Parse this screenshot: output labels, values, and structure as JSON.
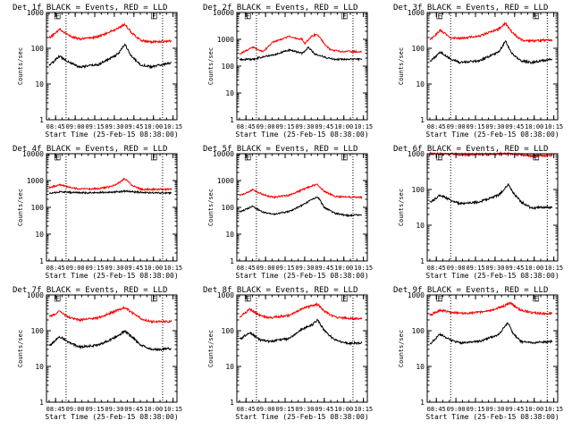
{
  "chart_data": [
    {
      "type": "line",
      "title": "Det 1f BLACK = Events, RED = LLD",
      "xlabel": "Start Time (25-Feb-15 08:38:00)",
      "ylabel": "Counts/sec",
      "yscale": "log",
      "ylim": [
        1,
        1000
      ],
      "y_ticks": [
        "1",
        "10",
        "100",
        "1000"
      ],
      "x_ticks": [
        "08:45",
        "09:00",
        "09:15",
        "09:30",
        "09:45",
        "10:00",
        "10:15"
      ],
      "x_ticks_min": [
        7,
        22,
        37,
        52,
        67,
        82,
        97
      ],
      "xlim_min": [
        0,
        100
      ],
      "marker_x_min": [
        15,
        89
      ],
      "markers": [
        "E",
        "E"
      ],
      "marker_pos_min": [
        7,
        81
      ],
      "series": [
        {
          "name": "Events",
          "color": "#000000",
          "x_min": [
            3,
            10,
            18,
            25,
            40,
            55,
            60,
            65,
            72,
            80,
            88,
            95
          ],
          "values": [
            35,
            60,
            40,
            30,
            35,
            70,
            130,
            60,
            35,
            30,
            35,
            38
          ]
        },
        {
          "name": "LLD",
          "color": "#ff0000",
          "x_min": [
            3,
            10,
            18,
            25,
            40,
            55,
            60,
            65,
            72,
            80,
            88,
            95
          ],
          "values": [
            200,
            340,
            220,
            180,
            210,
            360,
            480,
            280,
            170,
            150,
            155,
            160
          ]
        }
      ]
    },
    {
      "type": "line",
      "title": "Det 2f BLACK = Events, RED = LLD",
      "xlabel": "Start Time (25-Feb-15 08:38:00)",
      "ylabel": "Counts/sec",
      "yscale": "log",
      "ylim": [
        1,
        10000
      ],
      "y_ticks": [
        "1",
        "10",
        "100",
        "1000",
        "10000"
      ],
      "x_ticks": [
        "08:45",
        "09:00",
        "09:15",
        "09:30",
        "09:45",
        "10:00",
        "10:15"
      ],
      "x_ticks_min": [
        7,
        22,
        37,
        52,
        67,
        82,
        97
      ],
      "xlim_min": [
        0,
        100
      ],
      "marker_x_min": [
        15,
        89
      ],
      "markers": [
        "E",
        "E"
      ],
      "marker_pos_min": [
        7,
        81
      ],
      "series": [
        {
          "name": "Events",
          "color": "#000000",
          "x_min": [
            3,
            15,
            16,
            30,
            40,
            50,
            55,
            60,
            70,
            75,
            82,
            90,
            95
          ],
          "values": [
            180,
            180,
            200,
            280,
            400,
            300,
            500,
            280,
            200,
            180,
            180,
            180,
            180
          ]
        },
        {
          "name": "LLD",
          "color": "#ff0000",
          "x_min": [
            3,
            12,
            20,
            28,
            32,
            40,
            45,
            50,
            52,
            58,
            62,
            68,
            72,
            80,
            90,
            95
          ],
          "values": [
            300,
            500,
            350,
            800,
            900,
            1300,
            1100,
            1000,
            700,
            1400,
            1500,
            600,
            400,
            350,
            350,
            340
          ]
        }
      ]
    },
    {
      "type": "line",
      "title": "Det 3f BLACK = Events, RED = LLD",
      "xlabel": "Start Time (25-Feb-15 08:38:00)",
      "ylabel": "Counts/sec",
      "yscale": "log",
      "ylim": [
        1,
        1000
      ],
      "y_ticks": [
        "1",
        "10",
        "100",
        "1000"
      ],
      "x_ticks": [
        "08:45",
        "09:00",
        "09:15",
        "09:30",
        "09:45",
        "10:00",
        "10:15"
      ],
      "x_ticks_min": [
        7,
        22,
        37,
        52,
        67,
        82,
        97
      ],
      "xlim_min": [
        0,
        100
      ],
      "marker_x_min": [
        18,
        92
      ],
      "markers": [
        "E",
        "E"
      ],
      "marker_pos_min": [
        8,
        82
      ],
      "series": [
        {
          "name": "Events",
          "color": "#000000",
          "x_min": [
            3,
            10,
            18,
            25,
            40,
            55,
            60,
            65,
            72,
            80,
            88,
            95
          ],
          "values": [
            45,
            80,
            50,
            40,
            45,
            80,
            160,
            70,
            45,
            40,
            45,
            48
          ]
        },
        {
          "name": "LLD",
          "color": "#ff0000",
          "x_min": [
            3,
            10,
            18,
            25,
            40,
            55,
            60,
            65,
            72,
            80,
            88,
            95
          ],
          "values": [
            180,
            320,
            200,
            190,
            220,
            350,
            500,
            280,
            170,
            160,
            165,
            170
          ]
        }
      ]
    },
    {
      "type": "line",
      "title": "Det 4f BLACK = Events, RED = LLD",
      "xlabel": "Start Time (25-Feb-15 08:38:00)",
      "ylabel": "Counts/sec",
      "yscale": "log",
      "ylim": [
        1,
        10000
      ],
      "y_ticks": [
        "1",
        "10",
        "100",
        "1000",
        "10000"
      ],
      "x_ticks": [
        "08:45",
        "09:00",
        "09:15",
        "09:30",
        "09:45",
        "10:00",
        "10:15"
      ],
      "x_ticks_min": [
        7,
        22,
        37,
        52,
        67,
        82,
        97
      ],
      "xlim_min": [
        0,
        100
      ],
      "marker_x_min": [
        15,
        89
      ],
      "markers": [
        "E",
        "E"
      ],
      "marker_pos_min": [
        7,
        81
      ],
      "series": [
        {
          "name": "Events",
          "color": "#000000",
          "x_min": [
            3,
            10,
            20,
            30,
            40,
            50,
            60,
            70,
            80,
            90,
            95
          ],
          "values": [
            330,
            380,
            360,
            350,
            360,
            370,
            400,
            370,
            350,
            340,
            340
          ]
        },
        {
          "name": "LLD",
          "color": "#ff0000",
          "x_min": [
            3,
            10,
            20,
            30,
            40,
            50,
            56,
            60,
            65,
            72,
            80,
            90,
            95
          ],
          "values": [
            550,
            700,
            520,
            480,
            500,
            600,
            850,
            1200,
            700,
            480,
            470,
            470,
            470
          ]
        }
      ]
    },
    {
      "type": "line",
      "title": "Det 5f BLACK = Events, RED = LLD",
      "xlabel": "Start Time (25-Feb-15 08:38:00)",
      "ylabel": "Counts/sec",
      "yscale": "log",
      "ylim": [
        1,
        10000
      ],
      "y_ticks": [
        "1",
        "10",
        "100",
        "1000",
        "10000"
      ],
      "x_ticks": [
        "08:45",
        "09:00",
        "09:15",
        "09:30",
        "09:45",
        "10:00",
        "10:15"
      ],
      "x_ticks_min": [
        7,
        22,
        37,
        52,
        67,
        82,
        97
      ],
      "xlim_min": [
        0,
        100
      ],
      "marker_x_min": [
        15,
        89
      ],
      "markers": [
        "E",
        "E"
      ],
      "marker_pos_min": [
        7,
        81
      ],
      "series": [
        {
          "name": "Events",
          "color": "#000000",
          "x_min": [
            3,
            12,
            20,
            28,
            40,
            50,
            58,
            62,
            67,
            75,
            85,
            95
          ],
          "values": [
            70,
            110,
            65,
            55,
            70,
            120,
            200,
            250,
            100,
            60,
            50,
            52
          ]
        },
        {
          "name": "LLD",
          "color": "#ff0000",
          "x_min": [
            3,
            12,
            20,
            28,
            40,
            50,
            58,
            62,
            67,
            75,
            85,
            95
          ],
          "values": [
            280,
            450,
            300,
            240,
            280,
            450,
            650,
            700,
            400,
            260,
            240,
            240
          ]
        }
      ]
    },
    {
      "type": "line",
      "title": "Det 6f BLACK = Events, RED = LLD",
      "xlabel": "Start Time (25-Feb-15 08:38:00)",
      "ylabel": "Counts/sec",
      "yscale": "log",
      "ylim": [
        1,
        1000
      ],
      "y_ticks": [
        "1",
        "10",
        "100",
        "1000"
      ],
      "x_ticks": [
        "08:45",
        "09:00",
        "09:15",
        "09:30",
        "09:45",
        "10:00",
        "10:15"
      ],
      "x_ticks_min": [
        7,
        22,
        37,
        52,
        67,
        82,
        97
      ],
      "xlim_min": [
        0,
        100
      ],
      "marker_x_min": [
        18,
        92
      ],
      "markers": [
        "E",
        "E"
      ],
      "marker_pos_min": [
        8,
        82
      ],
      "series": [
        {
          "name": "Events",
          "color": "#000000",
          "x_min": [
            3,
            10,
            18,
            25,
            40,
            55,
            62,
            66,
            72,
            80,
            88,
            95
          ],
          "values": [
            45,
            70,
            50,
            40,
            45,
            70,
            140,
            80,
            45,
            30,
            32,
            32
          ]
        },
        {
          "name": "LLD",
          "color": "#ff0000",
          "x_min": [
            3,
            10,
            20,
            30,
            40,
            50,
            60,
            66,
            72,
            80,
            88,
            95
          ],
          "values": [
            990,
            1000,
            980,
            950,
            960,
            970,
            1000,
            990,
            930,
            880,
            900,
            900
          ]
        }
      ]
    },
    {
      "type": "line",
      "title": "Det 7f BLACK = Events, RED = LLD",
      "xlabel": "Start Time (25-Feb-15 08:38:00)",
      "ylabel": "Counts/sec",
      "yscale": "log",
      "ylim": [
        1,
        1000
      ],
      "y_ticks": [
        "1",
        "10",
        "100",
        "1000"
      ],
      "x_ticks": [
        "08:45",
        "09:00",
        "09:15",
        "09:30",
        "09:45",
        "10:00",
        "10:15"
      ],
      "x_ticks_min": [
        7,
        22,
        37,
        52,
        67,
        82,
        97
      ],
      "xlim_min": [
        0,
        100
      ],
      "marker_x_min": [
        15,
        89
      ],
      "markers": [
        "E",
        "E"
      ],
      "marker_pos_min": [
        7,
        81
      ],
      "series": [
        {
          "name": "Events",
          "color": "#000000",
          "x_min": [
            3,
            10,
            18,
            25,
            40,
            55,
            60,
            65,
            72,
            80,
            88,
            95
          ],
          "values": [
            40,
            70,
            45,
            35,
            40,
            70,
            100,
            70,
            40,
            30,
            30,
            32
          ]
        },
        {
          "name": "LLD",
          "color": "#ff0000",
          "x_min": [
            3,
            10,
            18,
            25,
            40,
            55,
            60,
            65,
            72,
            80,
            88,
            95
          ],
          "values": [
            250,
            350,
            230,
            200,
            230,
            380,
            450,
            330,
            220,
            180,
            180,
            180
          ]
        }
      ]
    },
    {
      "type": "line",
      "title": "Det 8f BLACK = Events, RED = LLD",
      "xlabel": "Start Time (25-Feb-15 08:38:00)",
      "ylabel": "Counts/sec",
      "yscale": "log",
      "ylim": [
        1,
        1000
      ],
      "y_ticks": [
        "1",
        "10",
        "100",
        "1000"
      ],
      "x_ticks": [
        "08:45",
        "09:00",
        "09:15",
        "09:30",
        "09:45",
        "10:00",
        "10:15"
      ],
      "x_ticks_min": [
        7,
        22,
        37,
        52,
        67,
        82,
        97
      ],
      "xlim_min": [
        0,
        100
      ],
      "marker_x_min": [
        15,
        89
      ],
      "markers": [
        "E",
        "E"
      ],
      "marker_pos_min": [
        7,
        81
      ],
      "series": [
        {
          "name": "Events",
          "color": "#000000",
          "x_min": [
            3,
            10,
            18,
            25,
            40,
            50,
            58,
            62,
            67,
            75,
            85,
            95
          ],
          "values": [
            60,
            90,
            55,
            50,
            60,
            110,
            150,
            200,
            100,
            55,
            45,
            45
          ]
        },
        {
          "name": "LLD",
          "color": "#ff0000",
          "x_min": [
            3,
            10,
            18,
            25,
            40,
            50,
            58,
            62,
            67,
            75,
            85,
            95
          ],
          "values": [
            250,
            400,
            260,
            230,
            270,
            420,
            500,
            550,
            350,
            240,
            220,
            220
          ]
        }
      ]
    },
    {
      "type": "line",
      "title": "Det 9f BLACK = Events, RED = LLD",
      "xlabel": "Start Time (25-Feb-15 08:38:00)",
      "ylabel": "Counts/sec",
      "yscale": "log",
      "ylim": [
        1,
        1000
      ],
      "y_ticks": [
        "1",
        "10",
        "100",
        "1000"
      ],
      "x_ticks": [
        "08:45",
        "09:00",
        "09:15",
        "09:30",
        "09:45",
        "10:00",
        "10:15"
      ],
      "x_ticks_min": [
        7,
        22,
        37,
        52,
        67,
        82,
        97
      ],
      "xlim_min": [
        0,
        100
      ],
      "marker_x_min": [
        18,
        92
      ],
      "markers": [
        "E",
        "E"
      ],
      "marker_pos_min": [
        8,
        82
      ],
      "series": [
        {
          "name": "Events",
          "color": "#000000",
          "x_min": [
            3,
            10,
            18,
            25,
            40,
            55,
            62,
            66,
            72,
            80,
            88,
            95
          ],
          "values": [
            45,
            80,
            55,
            45,
            50,
            80,
            170,
            80,
            50,
            45,
            48,
            50
          ]
        },
        {
          "name": "LLD",
          "color": "#ff0000",
          "x_min": [
            3,
            10,
            20,
            30,
            40,
            50,
            58,
            64,
            70,
            80,
            88,
            95
          ],
          "values": [
            280,
            380,
            320,
            300,
            330,
            380,
            480,
            600,
            400,
            320,
            300,
            300
          ]
        }
      ]
    }
  ]
}
